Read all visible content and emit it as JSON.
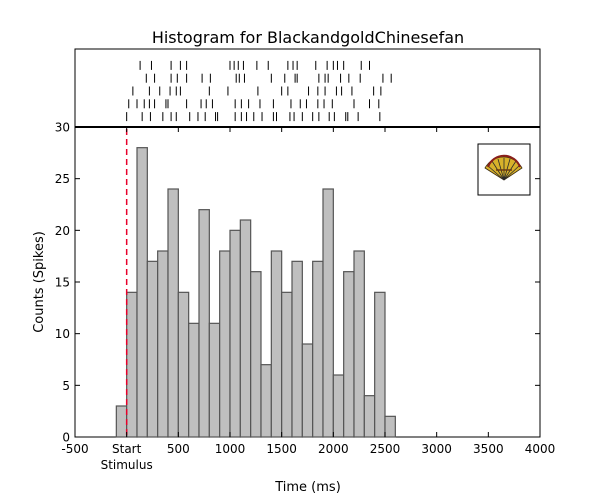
{
  "chart_data": {
    "type": "bar",
    "title": "Histogram for BlackandgoldChinesefan",
    "xlabel": "Time (ms)",
    "ylabel": "Counts (Spikes)",
    "xlim": [
      -500,
      4000
    ],
    "ylim": [
      0,
      30
    ],
    "x_ticks": [
      -500,
      0,
      500,
      1000,
      1500,
      2000,
      2500,
      3000,
      3500,
      4000
    ],
    "x_tick_labels": [
      "-500",
      "Start",
      "500",
      "1000",
      "1500",
      "2000",
      "2500",
      "3000",
      "3500",
      "4000"
    ],
    "x_tick_sublabel": {
      "at": 0,
      "text": "Stimulus"
    },
    "y_ticks": [
      0,
      5,
      10,
      15,
      20,
      25,
      30
    ],
    "y_tick_labels": [
      "0",
      "5",
      "10",
      "15",
      "20",
      "25",
      "30"
    ],
    "stimulus_line_x": 0,
    "bin_width": 100,
    "bin_starts": [
      -100,
      0,
      100,
      200,
      300,
      400,
      500,
      600,
      700,
      800,
      900,
      1000,
      1100,
      1200,
      1300,
      1400,
      1500,
      1600,
      1700,
      1800,
      1900,
      2000,
      2100,
      2200,
      2300,
      2400,
      2500
    ],
    "values": [
      3,
      14,
      28,
      17,
      18,
      24,
      14,
      11,
      22,
      11,
      18,
      20,
      21,
      16,
      7,
      18,
      14,
      17,
      9,
      17,
      24,
      6,
      16,
      18,
      4,
      14,
      2
    ],
    "raster_trials": [
      [
        130,
        240,
        430,
        520,
        580,
        1000,
        1040,
        1080,
        1130,
        1260,
        1370,
        1560,
        1610,
        1650,
        1830,
        1940,
        2000,
        2040,
        2100,
        2270,
        2350
      ],
      [
        190,
        270,
        430,
        490,
        580,
        730,
        810,
        1060,
        1090,
        1140,
        1400,
        1530,
        1630,
        1650,
        1860,
        1920,
        1950,
        2070,
        2150,
        2260,
        2480,
        2560
      ],
      [
        60,
        220,
        320,
        420,
        480,
        520,
        800,
        980,
        1270,
        1500,
        1560,
        1760,
        1850,
        1920,
        2030,
        2080,
        2180,
        2390,
        2460
      ],
      [
        20,
        100,
        170,
        220,
        270,
        380,
        400,
        580,
        720,
        770,
        830,
        1050,
        1110,
        1180,
        1290,
        1420,
        1590,
        1680,
        1740,
        1850,
        1910,
        1990,
        2200,
        2350,
        2440
      ],
      [
        0,
        150,
        230,
        350,
        430,
        480,
        610,
        690,
        760,
        860,
        880,
        1050,
        1110,
        1160,
        1230,
        1310,
        1420,
        1450,
        1580,
        1620,
        1700,
        1800,
        1860,
        1960,
        2010,
        2120,
        2140,
        2240,
        2450
      ]
    ]
  }
}
